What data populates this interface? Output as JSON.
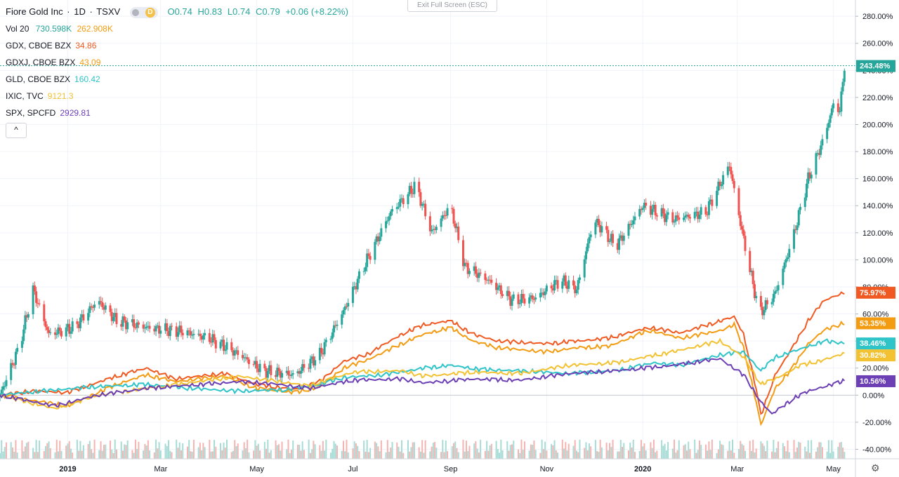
{
  "header": {
    "symbol_name": "Fiore Gold Inc",
    "sep": "·",
    "interval": "1D",
    "exchange": "TSXV",
    "badge": "D",
    "open": "O0.74",
    "high": "H0.83",
    "low": "L0.74",
    "close": "C0.79",
    "change": "+0.06 (+8.22%)",
    "volume_label": "Vol 20",
    "volume_value": "730.598K",
    "volume_ma": "262.908K"
  },
  "exit_fullscreen_label": "Exit Full Screen (ESC)",
  "collapse_symbol": "^",
  "settings_icon": "gear-icon",
  "compare_legend": [
    {
      "label": "GDX, CBOE BZX",
      "value": "34.86",
      "color": "#f05a22"
    },
    {
      "label": "GDXJ, CBOE BZX",
      "value": "43.09",
      "color": "#f39c12"
    },
    {
      "label": "GLD, CBOE BZX",
      "value": "160.42",
      "color": "#2ec4c8"
    },
    {
      "label": "IXIC, TVC",
      "value": "9121.3",
      "color": "#f2c232"
    },
    {
      "label": "SPX, SPCFD",
      "value": "2929.81",
      "color": "#6c3fb5"
    }
  ],
  "chart_data": {
    "type": "line",
    "y_axis": {
      "ticks": [
        280,
        260,
        240,
        220,
        200,
        180,
        160,
        140,
        120,
        100,
        80,
        60,
        40,
        20,
        0,
        -20,
        -40
      ],
      "tick_labels": [
        "280.00%",
        "260.00%",
        "240.00%",
        "220.00%",
        "200.00%",
        "180.00%",
        "160.00%",
        "140.00%",
        "120.00%",
        "100.00%",
        "80.00%",
        "60.00%",
        "40.00%",
        "20.00%",
        "0.00%",
        "-20.00%",
        "-40.00%"
      ],
      "range": [
        -47,
        292
      ]
    },
    "x_axis": {
      "range": [
        "2018-11-19",
        "2020-05-15"
      ],
      "ticks": [
        {
          "date": "2019-01-01",
          "label": "2019"
        },
        {
          "date": "2019-03-01",
          "label": "Mar"
        },
        {
          "date": "2019-05-01",
          "label": "May"
        },
        {
          "date": "2019-07-01",
          "label": "Jul"
        },
        {
          "date": "2019-09-01",
          "label": "Sep"
        },
        {
          "date": "2019-11-01",
          "label": "Nov"
        },
        {
          "date": "2020-01-01",
          "label": "2020"
        },
        {
          "date": "2020-03-01",
          "label": "Mar"
        },
        {
          "date": "2020-05-01",
          "label": "May"
        }
      ]
    },
    "grid": true,
    "main_series": {
      "name": "Fiore Gold Inc",
      "style": "candles",
      "up_color": "#26a69a",
      "down_color": "#ef5350",
      "last_value": 243.48,
      "last_label": "243.48%",
      "points": [
        {
          "x": "2018-11-19",
          "y": 0
        },
        {
          "x": "2018-12-01",
          "y": 35
        },
        {
          "x": "2018-12-10",
          "y": 78
        },
        {
          "x": "2018-12-20",
          "y": 45
        },
        {
          "x": "2019-01-05",
          "y": 50
        },
        {
          "x": "2019-01-20",
          "y": 70
        },
        {
          "x": "2019-02-01",
          "y": 55
        },
        {
          "x": "2019-02-20",
          "y": 50
        },
        {
          "x": "2019-03-15",
          "y": 47
        },
        {
          "x": "2019-04-01",
          "y": 42
        },
        {
          "x": "2019-04-20",
          "y": 30
        },
        {
          "x": "2019-05-05",
          "y": 18
        },
        {
          "x": "2019-05-25",
          "y": 15
        },
        {
          "x": "2019-06-10",
          "y": 30
        },
        {
          "x": "2019-06-25",
          "y": 62
        },
        {
          "x": "2019-07-10",
          "y": 100
        },
        {
          "x": "2019-07-25",
          "y": 135
        },
        {
          "x": "2019-08-10",
          "y": 155
        },
        {
          "x": "2019-08-20",
          "y": 120
        },
        {
          "x": "2019-09-01",
          "y": 140
        },
        {
          "x": "2019-09-10",
          "y": 95
        },
        {
          "x": "2019-09-25",
          "y": 85
        },
        {
          "x": "2019-10-10",
          "y": 70
        },
        {
          "x": "2019-10-25",
          "y": 72
        },
        {
          "x": "2019-11-10",
          "y": 85
        },
        {
          "x": "2019-11-20",
          "y": 78
        },
        {
          "x": "2019-12-01",
          "y": 130
        },
        {
          "x": "2019-12-15",
          "y": 110
        },
        {
          "x": "2020-01-01",
          "y": 140
        },
        {
          "x": "2020-01-20",
          "y": 130
        },
        {
          "x": "2020-02-10",
          "y": 135
        },
        {
          "x": "2020-02-25",
          "y": 170
        },
        {
          "x": "2020-03-05",
          "y": 115
        },
        {
          "x": "2020-03-15",
          "y": 60
        },
        {
          "x": "2020-03-25",
          "y": 75
        },
        {
          "x": "2020-04-05",
          "y": 115
        },
        {
          "x": "2020-04-15",
          "y": 160
        },
        {
          "x": "2020-04-25",
          "y": 190
        },
        {
          "x": "2020-05-01",
          "y": 215
        },
        {
          "x": "2020-05-05",
          "y": 210
        },
        {
          "x": "2020-05-08",
          "y": 243.48
        }
      ]
    },
    "series": [
      {
        "name": "GDX, CBOE BZX",
        "color": "#f05a22",
        "last_label": "75.97%",
        "points": [
          {
            "x": "2018-11-19",
            "y": 0
          },
          {
            "x": "2018-12-10",
            "y": 3
          },
          {
            "x": "2019-01-01",
            "y": 2
          },
          {
            "x": "2019-02-01",
            "y": 14
          },
          {
            "x": "2019-02-20",
            "y": 20
          },
          {
            "x": "2019-03-10",
            "y": 12
          },
          {
            "x": "2019-04-10",
            "y": 16
          },
          {
            "x": "2019-05-01",
            "y": 8
          },
          {
            "x": "2019-05-25",
            "y": 4
          },
          {
            "x": "2019-06-10",
            "y": 10
          },
          {
            "x": "2019-06-25",
            "y": 25
          },
          {
            "x": "2019-07-10",
            "y": 30
          },
          {
            "x": "2019-08-01",
            "y": 45
          },
          {
            "x": "2019-08-15",
            "y": 52
          },
          {
            "x": "2019-09-01",
            "y": 55
          },
          {
            "x": "2019-09-15",
            "y": 45
          },
          {
            "x": "2019-10-01",
            "y": 40
          },
          {
            "x": "2019-11-01",
            "y": 38
          },
          {
            "x": "2019-11-20",
            "y": 40
          },
          {
            "x": "2019-12-10",
            "y": 42
          },
          {
            "x": "2020-01-05",
            "y": 50
          },
          {
            "x": "2020-01-25",
            "y": 46
          },
          {
            "x": "2020-02-20",
            "y": 55
          },
          {
            "x": "2020-02-28",
            "y": 58
          },
          {
            "x": "2020-03-05",
            "y": 45
          },
          {
            "x": "2020-03-12",
            "y": 10
          },
          {
            "x": "2020-03-16",
            "y": -15
          },
          {
            "x": "2020-03-25",
            "y": 15
          },
          {
            "x": "2020-04-05",
            "y": 35
          },
          {
            "x": "2020-04-15",
            "y": 55
          },
          {
            "x": "2020-04-25",
            "y": 70
          },
          {
            "x": "2020-05-08",
            "y": 75.97
          }
        ]
      },
      {
        "name": "GDXJ, CBOE BZX",
        "color": "#f39c12",
        "last_label": "53.35%",
        "points": [
          {
            "x": "2018-11-19",
            "y": 0
          },
          {
            "x": "2018-12-10",
            "y": -4
          },
          {
            "x": "2019-01-01",
            "y": -8
          },
          {
            "x": "2019-02-01",
            "y": 8
          },
          {
            "x": "2019-02-20",
            "y": 15
          },
          {
            "x": "2019-03-10",
            "y": 10
          },
          {
            "x": "2019-04-10",
            "y": 14
          },
          {
            "x": "2019-05-01",
            "y": 5
          },
          {
            "x": "2019-05-25",
            "y": 2
          },
          {
            "x": "2019-06-10",
            "y": 6
          },
          {
            "x": "2019-06-25",
            "y": 20
          },
          {
            "x": "2019-07-10",
            "y": 26
          },
          {
            "x": "2019-08-01",
            "y": 38
          },
          {
            "x": "2019-08-15",
            "y": 45
          },
          {
            "x": "2019-09-01",
            "y": 50
          },
          {
            "x": "2019-09-15",
            "y": 40
          },
          {
            "x": "2019-10-01",
            "y": 35
          },
          {
            "x": "2019-11-01",
            "y": 32
          },
          {
            "x": "2019-11-20",
            "y": 35
          },
          {
            "x": "2019-12-10",
            "y": 36
          },
          {
            "x": "2020-01-05",
            "y": 48
          },
          {
            "x": "2020-01-25",
            "y": 42
          },
          {
            "x": "2020-02-20",
            "y": 48
          },
          {
            "x": "2020-02-28",
            "y": 52
          },
          {
            "x": "2020-03-05",
            "y": 35
          },
          {
            "x": "2020-03-12",
            "y": 0
          },
          {
            "x": "2020-03-16",
            "y": -22
          },
          {
            "x": "2020-03-25",
            "y": 5
          },
          {
            "x": "2020-04-05",
            "y": 20
          },
          {
            "x": "2020-04-15",
            "y": 38
          },
          {
            "x": "2020-04-25",
            "y": 48
          },
          {
            "x": "2020-05-08",
            "y": 53.35
          }
        ]
      },
      {
        "name": "GLD, CBOE BZX",
        "color": "#2ec4c8",
        "last_label": "38.46%",
        "points": [
          {
            "x": "2018-11-19",
            "y": 0
          },
          {
            "x": "2018-12-15",
            "y": 3
          },
          {
            "x": "2019-01-15",
            "y": 6
          },
          {
            "x": "2019-02-20",
            "y": 8
          },
          {
            "x": "2019-03-20",
            "y": 5
          },
          {
            "x": "2019-04-20",
            "y": 3
          },
          {
            "x": "2019-05-20",
            "y": 4
          },
          {
            "x": "2019-06-10",
            "y": 8
          },
          {
            "x": "2019-06-25",
            "y": 13
          },
          {
            "x": "2019-07-20",
            "y": 15
          },
          {
            "x": "2019-08-15",
            "y": 20
          },
          {
            "x": "2019-09-01",
            "y": 22
          },
          {
            "x": "2019-09-20",
            "y": 19
          },
          {
            "x": "2019-10-15",
            "y": 18
          },
          {
            "x": "2019-11-15",
            "y": 16
          },
          {
            "x": "2019-12-15",
            "y": 18
          },
          {
            "x": "2020-01-08",
            "y": 24
          },
          {
            "x": "2020-01-25",
            "y": 22
          },
          {
            "x": "2020-02-20",
            "y": 30
          },
          {
            "x": "2020-03-05",
            "y": 32
          },
          {
            "x": "2020-03-16",
            "y": 18
          },
          {
            "x": "2020-03-25",
            "y": 28
          },
          {
            "x": "2020-04-10",
            "y": 34
          },
          {
            "x": "2020-04-25",
            "y": 40
          },
          {
            "x": "2020-05-08",
            "y": 38.46
          }
        ]
      },
      {
        "name": "IXIC, TVC",
        "color": "#f2c232",
        "last_label": "30.82%",
        "points": [
          {
            "x": "2018-11-19",
            "y": 0
          },
          {
            "x": "2018-12-24",
            "y": -10
          },
          {
            "x": "2019-01-20",
            "y": 0
          },
          {
            "x": "2019-02-20",
            "y": 5
          },
          {
            "x": "2019-04-20",
            "y": 14
          },
          {
            "x": "2019-05-15",
            "y": 10
          },
          {
            "x": "2019-06-03",
            "y": 7
          },
          {
            "x": "2019-07-01",
            "y": 17
          },
          {
            "x": "2019-08-01",
            "y": 18
          },
          {
            "x": "2019-08-15",
            "y": 14
          },
          {
            "x": "2019-09-15",
            "y": 17
          },
          {
            "x": "2019-10-15",
            "y": 16
          },
          {
            "x": "2019-11-15",
            "y": 22
          },
          {
            "x": "2019-12-15",
            "y": 24
          },
          {
            "x": "2020-01-20",
            "y": 32
          },
          {
            "x": "2020-02-19",
            "y": 40
          },
          {
            "x": "2020-03-05",
            "y": 28
          },
          {
            "x": "2020-03-16",
            "y": 8
          },
          {
            "x": "2020-03-25",
            "y": 12
          },
          {
            "x": "2020-04-10",
            "y": 22
          },
          {
            "x": "2020-04-25",
            "y": 26
          },
          {
            "x": "2020-05-08",
            "y": 30.82
          }
        ]
      },
      {
        "name": "SPX, SPCFD",
        "color": "#6c3fb5",
        "last_label": "10.56%",
        "points": [
          {
            "x": "2018-11-19",
            "y": 0
          },
          {
            "x": "2018-12-24",
            "y": -8
          },
          {
            "x": "2019-01-20",
            "y": 0
          },
          {
            "x": "2019-02-20",
            "y": 5
          },
          {
            "x": "2019-04-20",
            "y": 10
          },
          {
            "x": "2019-05-15",
            "y": 8
          },
          {
            "x": "2019-06-03",
            "y": 5
          },
          {
            "x": "2019-07-01",
            "y": 11
          },
          {
            "x": "2019-08-01",
            "y": 12
          },
          {
            "x": "2019-08-15",
            "y": 9
          },
          {
            "x": "2019-09-15",
            "y": 12
          },
          {
            "x": "2019-10-15",
            "y": 11
          },
          {
            "x": "2019-11-15",
            "y": 16
          },
          {
            "x": "2019-12-15",
            "y": 18
          },
          {
            "x": "2020-01-20",
            "y": 22
          },
          {
            "x": "2020-02-19",
            "y": 27
          },
          {
            "x": "2020-03-05",
            "y": 15
          },
          {
            "x": "2020-03-16",
            "y": -5
          },
          {
            "x": "2020-03-23",
            "y": -14
          },
          {
            "x": "2020-04-05",
            "y": -3
          },
          {
            "x": "2020-04-15",
            "y": 3
          },
          {
            "x": "2020-05-08",
            "y": 10.56
          }
        ]
      }
    ]
  }
}
